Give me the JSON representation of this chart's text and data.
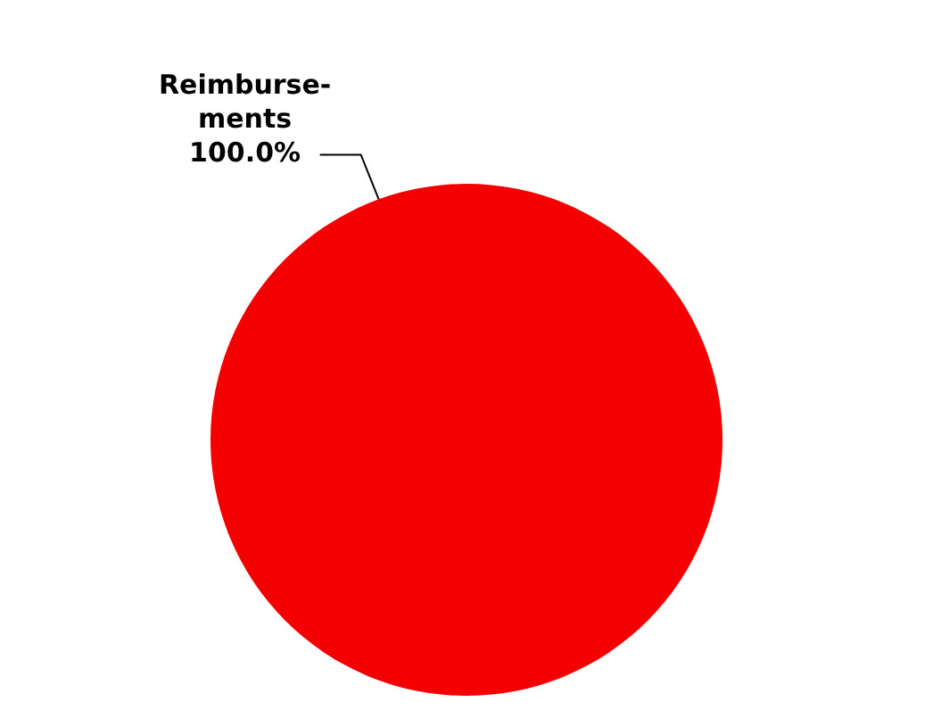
{
  "chart_data": {
    "type": "pie",
    "categories": [
      "Reimburse-ments"
    ],
    "values": [
      100
    ],
    "colors": [
      "#f50000"
    ],
    "value_labels": [
      "100.0%"
    ],
    "legend": false
  }
}
